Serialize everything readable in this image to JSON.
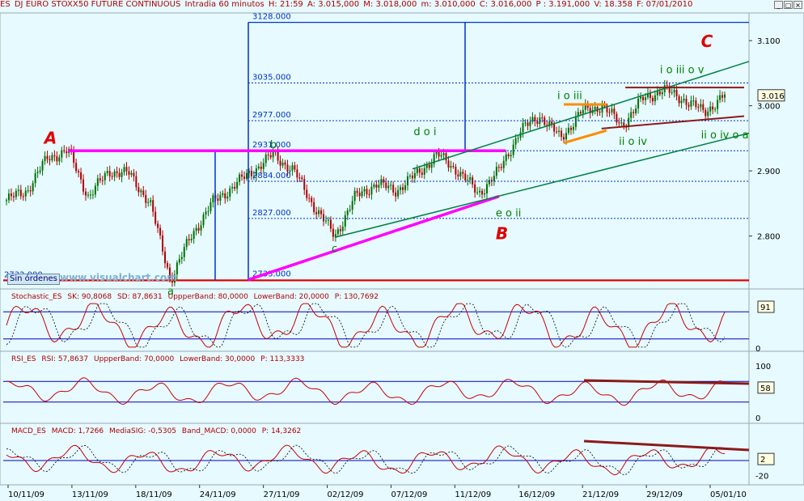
{
  "header": {
    "symbol": "ES",
    "title": "DJ EURO STOXX50 FUTURE CONTINUOUS",
    "period": "Intradia 60 minutos",
    "high_label": "H: 21:59",
    "ask_label": "A: 3.015,000",
    "max_label": "M: 3.018,000",
    "min_label": "m: 3.010,000",
    "close_label": "C: 3.016,000",
    "p_label": "P : 3.191,000",
    "vol_label": "V: 18.358",
    "date_label": "F: 07/01/2010",
    "window_buttons": [
      "_",
      "▢",
      "×"
    ]
  },
  "chart_data": [
    {
      "type": "candlestick",
      "name": "main_price",
      "ylim": [
        2720,
        3140
      ],
      "y_ticks": [
        "3.100",
        "3.000",
        "2.900",
        "2.800"
      ],
      "y_tick_values": [
        3100,
        3000,
        2900,
        2800
      ],
      "current_value": "3.016",
      "close_path": [
        {
          "date": "10/11/09",
          "value": 2855
        },
        {
          "date": "13/11/09",
          "value": 2870
        },
        {
          "date": "17/11/09",
          "value": 2920
        },
        {
          "date": "18/11/09",
          "value": 2931
        },
        {
          "date": "20/11/09",
          "value": 2860
        },
        {
          "date": "23/11/09",
          "value": 2900
        },
        {
          "date": "24/11/09",
          "value": 2895
        },
        {
          "date": "25/11/09",
          "value": 2850
        },
        {
          "date": "26/11/09",
          "value": 2733
        },
        {
          "date": "27/11/09",
          "value": 2800
        },
        {
          "date": "30/11/09",
          "value": 2850
        },
        {
          "date": "01/12/09",
          "value": 2875
        },
        {
          "date": "03/12/09",
          "value": 2900
        },
        {
          "date": "04/12/09",
          "value": 2925
        },
        {
          "date": "07/12/09",
          "value": 2900
        },
        {
          "date": "08/12/09",
          "value": 2845
        },
        {
          "date": "09/12/09",
          "value": 2800
        },
        {
          "date": "10/12/09",
          "value": 2860
        },
        {
          "date": "11/12/09",
          "value": 2880
        },
        {
          "date": "14/12/09",
          "value": 2870
        },
        {
          "date": "15/12/09",
          "value": 2895
        },
        {
          "date": "16/12/09",
          "value": 2925
        },
        {
          "date": "17/12/09",
          "value": 2900
        },
        {
          "date": "18/12/09",
          "value": 2865
        },
        {
          "date": "21/12/09",
          "value": 2900
        },
        {
          "date": "22/12/09",
          "value": 2960
        },
        {
          "date": "23/12/09",
          "value": 2985
        },
        {
          "date": "24/12/09",
          "value": 2950
        },
        {
          "date": "28/12/09",
          "value": 2990
        },
        {
          "date": "29/12/09",
          "value": 3000
        },
        {
          "date": "30/12/09",
          "value": 2970
        },
        {
          "date": "31/12/09",
          "value": 3010
        },
        {
          "date": "04/01/10",
          "value": 3025
        },
        {
          "date": "05/01/10",
          "value": 3010
        },
        {
          "date": "06/01/10",
          "value": 2990
        },
        {
          "date": "07/01/10",
          "value": 3016
        }
      ],
      "levels": [
        {
          "label": "3128.000",
          "value": 3128
        },
        {
          "label": "3035.000",
          "value": 3035
        },
        {
          "label": "2977.000",
          "value": 2977
        },
        {
          "label": "2931.000",
          "value": 2931
        },
        {
          "label": "2884.000",
          "value": 2884
        },
        {
          "label": "2827.000",
          "value": 2827
        },
        {
          "label": "2733.000",
          "value": 2733
        },
        {
          "label": "2732.000",
          "value": 2732
        }
      ],
      "annotations": [
        {
          "text": "A",
          "color": "#E00000",
          "date": "17/11/09",
          "value": 2942
        },
        {
          "text": "B",
          "color": "#E00000",
          "date": "21/12/09",
          "value": 2795
        },
        {
          "text": "C",
          "color": "#E00000",
          "date": "06/01/10",
          "value": 3090
        },
        {
          "text": "a",
          "color": "#008000",
          "date": "26/11/09",
          "value": 2710
        },
        {
          "text": "b",
          "color": "#008000",
          "date": "04/12/09",
          "value": 2935
        },
        {
          "text": "c",
          "color": "#008000",
          "date": "09/12/09",
          "value": 2775
        },
        {
          "text": "d o i",
          "color": "#008000",
          "date": "15/12/09",
          "value": 2955
        },
        {
          "text": "e o ii",
          "color": "#008000",
          "date": "21/12/09",
          "value": 2830
        },
        {
          "text": "i o iii",
          "color": "#008000",
          "date": "24/12/09",
          "value": 3010
        },
        {
          "text": "i o iii o v",
          "color": "#008000",
          "date": "04/01/10",
          "value": 3050
        },
        {
          "text": "ii o iv",
          "color": "#008000",
          "date": "30/12/09",
          "value": 2940
        },
        {
          "text": "ii o iv o a",
          "color": "#008000",
          "date": "06/01/10",
          "value": 2950
        }
      ],
      "watermark": "www.visualchart.com",
      "orders_button": "Sin órdenes"
    },
    {
      "type": "line",
      "name": "Stochastic_ES",
      "header_items": [
        "Stochastic_ES",
        "SK: 90,8068",
        "SD: 87,8631",
        "UppperBand: 80,0000",
        "LowerBand: 20,0000",
        "P: 130,7692"
      ],
      "ylim": [
        0,
        100
      ],
      "y_ticks": [
        "0"
      ],
      "bands": [
        80,
        20
      ],
      "current_value": "91"
    },
    {
      "type": "line",
      "name": "RSI_ES",
      "header_items": [
        "RSI_ES",
        "RSI: 57,8637",
        "UppperBand: 70,0000",
        "LowerBand: 30,0000",
        "P: 113,3333"
      ],
      "ylim": [
        0,
        100
      ],
      "y_ticks": [
        "100",
        "0"
      ],
      "bands": [
        70,
        30
      ],
      "current_value": "58"
    },
    {
      "type": "line",
      "name": "MACD_ES",
      "header_items": [
        "MACD_ES",
        "MACD: 1,7266",
        "MediaSIG: -0,5305",
        "Band_MACD: 0,0000",
        "P: 14,3262"
      ],
      "ylim": [
        -30,
        30
      ],
      "y_ticks": [
        "-20"
      ],
      "bands": [
        0
      ],
      "current_value": "2"
    }
  ],
  "x_axis": {
    "labels": [
      "10/11/09",
      "13/11/09",
      "18/11/09",
      "24/11/09",
      "27/11/09",
      "02/12/09",
      "07/12/09",
      "11/12/09",
      "16/12/09",
      "21/12/09",
      "29/12/09",
      "05/01/10"
    ]
  },
  "colors": {
    "background": "#E6FAFF",
    "bull_candle": "#007000",
    "bear_candle": "#B00000",
    "magenta": "#FF00FF",
    "channel": "#008040",
    "fib_lines": "#0033CC",
    "trend_dark": "#8B1A1A",
    "orange": "#FF8C00",
    "indicator_line": "#CC0000",
    "band_line": "#0000C0"
  }
}
